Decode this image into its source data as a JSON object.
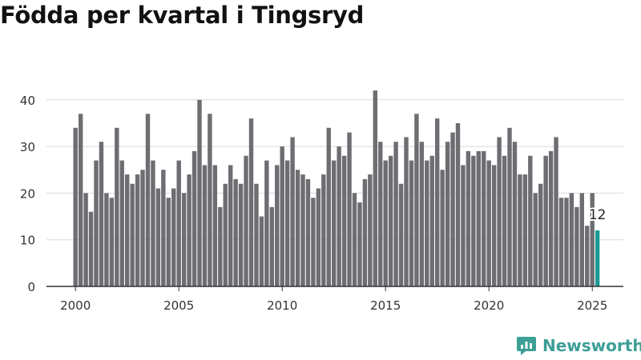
{
  "title": "Födda per kvartal i Tingsryd",
  "brand": {
    "name": "Newsworthy",
    "logo_icon": "newsworthy-logo-icon",
    "color": "#3d9f96"
  },
  "chart_data": {
    "type": "bar",
    "title": "Födda per kvartal i Tingsryd",
    "xlabel": "",
    "ylabel": "",
    "x_ticks": [
      "2000",
      "2005",
      "2010",
      "2015",
      "2020",
      "2025"
    ],
    "y_ticks": [
      0,
      10,
      20,
      30,
      40
    ],
    "ylim": [
      0,
      45
    ],
    "grid": true,
    "colors": {
      "bar": "#6d6d72",
      "highlight": "#1a9a93",
      "grid": "#d9d9d9",
      "axis": "#333333"
    },
    "categories": [
      "2000 Q1",
      "2000 Q2",
      "2000 Q3",
      "2000 Q4",
      "2001 Q1",
      "2001 Q2",
      "2001 Q3",
      "2001 Q4",
      "2002 Q1",
      "2002 Q2",
      "2002 Q3",
      "2002 Q4",
      "2003 Q1",
      "2003 Q2",
      "2003 Q3",
      "2003 Q4",
      "2004 Q1",
      "2004 Q2",
      "2004 Q3",
      "2004 Q4",
      "2005 Q1",
      "2005 Q2",
      "2005 Q3",
      "2005 Q4",
      "2006 Q1",
      "2006 Q2",
      "2006 Q3",
      "2006 Q4",
      "2007 Q1",
      "2007 Q2",
      "2007 Q3",
      "2007 Q4",
      "2008 Q1",
      "2008 Q2",
      "2008 Q3",
      "2008 Q4",
      "2009 Q1",
      "2009 Q2",
      "2009 Q3",
      "2009 Q4",
      "2010 Q1",
      "2010 Q2",
      "2010 Q3",
      "2010 Q4",
      "2011 Q1",
      "2011 Q2",
      "2011 Q3",
      "2011 Q4",
      "2012 Q1",
      "2012 Q2",
      "2012 Q3",
      "2012 Q4",
      "2013 Q1",
      "2013 Q2",
      "2013 Q3",
      "2013 Q4",
      "2014 Q1",
      "2014 Q2",
      "2014 Q3",
      "2014 Q4",
      "2015 Q1",
      "2015 Q2",
      "2015 Q3",
      "2015 Q4",
      "2016 Q1",
      "2016 Q2",
      "2016 Q3",
      "2016 Q4",
      "2017 Q1",
      "2017 Q2",
      "2017 Q3",
      "2017 Q4",
      "2018 Q1",
      "2018 Q2",
      "2018 Q3",
      "2018 Q4",
      "2019 Q1",
      "2019 Q2",
      "2019 Q3",
      "2019 Q4",
      "2020 Q1",
      "2020 Q2",
      "2020 Q3",
      "2020 Q4",
      "2021 Q1",
      "2021 Q2",
      "2021 Q3",
      "2021 Q4",
      "2022 Q1",
      "2022 Q2",
      "2022 Q3",
      "2022 Q4",
      "2023 Q1",
      "2023 Q2",
      "2023 Q3",
      "2023 Q4",
      "2024 Q1",
      "2024 Q2",
      "2024 Q3",
      "2024 Q4",
      "2025 Q1",
      "2025 Q2"
    ],
    "values": [
      34,
      37,
      20,
      16,
      27,
      31,
      20,
      19,
      34,
      27,
      24,
      22,
      24,
      25,
      37,
      27,
      21,
      25,
      19,
      21,
      27,
      20,
      24,
      29,
      40,
      26,
      37,
      26,
      17,
      22,
      26,
      23,
      22,
      28,
      36,
      22,
      15,
      27,
      17,
      26,
      30,
      27,
      32,
      25,
      24,
      23,
      19,
      21,
      24,
      34,
      27,
      30,
      28,
      33,
      20,
      18,
      23,
      24,
      42,
      31,
      27,
      28,
      31,
      22,
      32,
      27,
      37,
      31,
      27,
      28,
      36,
      25,
      31,
      33,
      35,
      26,
      29,
      28,
      29,
      29,
      27,
      26,
      32,
      28,
      34,
      31,
      24,
      24,
      28,
      20,
      22,
      28,
      29,
      32,
      19,
      19,
      20,
      17,
      20,
      13,
      20,
      12
    ],
    "highlight_index": 101,
    "highlight_label": "12"
  }
}
